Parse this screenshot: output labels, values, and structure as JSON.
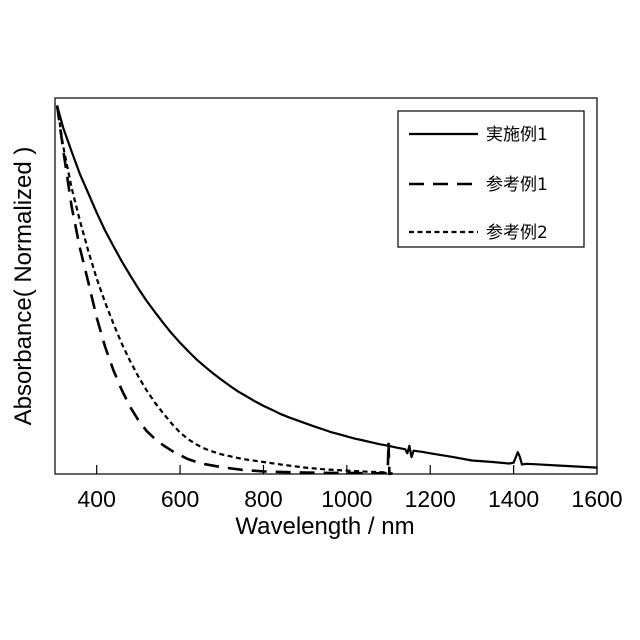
{
  "chart_data": {
    "type": "line",
    "title": "",
    "xlabel": "Wavelength / nm",
    "ylabel": "Absorbance( Normalized )",
    "xlim": [
      300,
      1600
    ],
    "ylim": [
      0,
      1
    ],
    "x_ticks": [
      400,
      600,
      800,
      1000,
      1200,
      1400,
      1600
    ],
    "y_ticks": [],
    "grid": false,
    "legend_position": "top-right",
    "series": [
      {
        "name": "実施例1",
        "line_style": "solid",
        "color": "#000000",
        "x": [
          305,
          320,
          340,
          360,
          380,
          400,
          420,
          440,
          460,
          480,
          500,
          520,
          540,
          560,
          580,
          600,
          620,
          640,
          660,
          680,
          700,
          720,
          740,
          760,
          780,
          800,
          820,
          840,
          860,
          880,
          900,
          920,
          940,
          960,
          980,
          1000,
          1020,
          1040,
          1060,
          1080,
          1100,
          1120,
          1140,
          1145,
          1150,
          1155,
          1160,
          1180,
          1200,
          1250,
          1300,
          1350,
          1390,
          1400,
          1405,
          1410,
          1415,
          1420,
          1430,
          1450,
          1500,
          1550,
          1600
        ],
        "y": [
          0.98,
          0.92,
          0.857,
          0.797,
          0.746,
          0.695,
          0.648,
          0.606,
          0.566,
          0.529,
          0.493,
          0.46,
          0.43,
          0.401,
          0.374,
          0.349,
          0.326,
          0.304,
          0.285,
          0.267,
          0.25,
          0.234,
          0.219,
          0.206,
          0.193,
          0.181,
          0.171,
          0.16,
          0.151,
          0.143,
          0.135,
          0.127,
          0.12,
          0.112,
          0.106,
          0.1,
          0.094,
          0.089,
          0.084,
          0.079,
          0.075,
          0.07,
          0.066,
          0.055,
          0.075,
          0.045,
          0.062,
          0.059,
          0.055,
          0.046,
          0.036,
          0.032,
          0.028,
          0.03,
          0.044,
          0.058,
          0.045,
          0.025,
          0.027,
          0.026,
          0.023,
          0.02,
          0.017
        ]
      },
      {
        "name": "参考例1",
        "line_style": "long-dash",
        "color": "#000000",
        "x": [
          305,
          320,
          340,
          360,
          380,
          400,
          420,
          440,
          460,
          480,
          500,
          520,
          540,
          560,
          580,
          600,
          620,
          640,
          660,
          680,
          700,
          750,
          800,
          850,
          900,
          950,
          1000,
          1050,
          1098,
          1100,
          1102,
          1110
        ],
        "y": [
          0.98,
          0.86,
          0.71,
          0.6,
          0.509,
          0.416,
          0.339,
          0.276,
          0.224,
          0.179,
          0.143,
          0.114,
          0.093,
          0.076,
          0.062,
          0.05,
          0.039,
          0.032,
          0.026,
          0.022,
          0.018,
          0.011,
          0.007,
          0.005,
          0.004,
          0.003,
          0.003,
          0.002,
          0.002,
          0.085,
          0.0,
          0.002
        ]
      },
      {
        "name": "参考例2",
        "line_style": "short-dash",
        "color": "#000000",
        "x": [
          305,
          320,
          340,
          360,
          380,
          400,
          420,
          440,
          460,
          480,
          500,
          520,
          540,
          560,
          580,
          600,
          620,
          640,
          660,
          680,
          700,
          750,
          800,
          850,
          900,
          950,
          1000,
          1050,
          1100
        ],
        "y": [
          0.98,
          0.87,
          0.76,
          0.673,
          0.592,
          0.52,
          0.457,
          0.4,
          0.347,
          0.301,
          0.259,
          0.222,
          0.189,
          0.161,
          0.134,
          0.11,
          0.092,
          0.078,
          0.067,
          0.059,
          0.052,
          0.04,
          0.032,
          0.024,
          0.017,
          0.012,
          0.009,
          0.006,
          0.004
        ]
      }
    ]
  }
}
